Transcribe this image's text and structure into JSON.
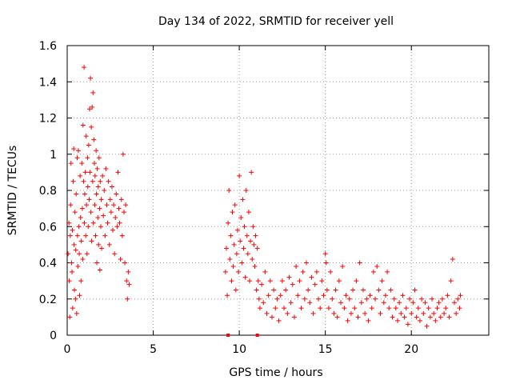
{
  "chart_data": {
    "type": "scatter",
    "title": "Day 134 of 2022, SRMTID for receiver yell",
    "xlabel": "GPS time / hours",
    "ylabel": "SRMTID / TECUs",
    "xlim": [
      0,
      24.5
    ],
    "ylim": [
      0,
      1.6
    ],
    "grid": true,
    "x_ticks": [
      0,
      5,
      10,
      15,
      20
    ],
    "x_tick_labels": [
      "0",
      "5",
      "10",
      "15",
      "20"
    ],
    "y_ticks": [
      0,
      0.2,
      0.4,
      0.6,
      0.8,
      1.0,
      1.2,
      1.4,
      1.6
    ],
    "y_tick_labels": [
      "0",
      "0.2",
      "0.4",
      "0.6",
      "0.8",
      "1",
      "1.2",
      "1.4",
      "1.6"
    ],
    "marker": "plus",
    "color": "#ff0000",
    "x_axis_markers": [
      9.35,
      11.05
    ],
    "series": [
      {
        "name": "SRMTID",
        "points": [
          [
            0.05,
            0.45
          ],
          [
            0.1,
            0.62
          ],
          [
            0.12,
            0.3
          ],
          [
            0.15,
            0.1
          ],
          [
            0.18,
            0.55
          ],
          [
            0.2,
            0.72
          ],
          [
            0.22,
            0.95
          ],
          [
            0.25,
            0.4
          ],
          [
            0.28,
            0.35
          ],
          [
            0.3,
            0.58
          ],
          [
            0.32,
            0.15
          ],
          [
            0.35,
            0.85
          ],
          [
            0.38,
            1.03
          ],
          [
            0.4,
            0.5
          ],
          [
            0.42,
            0.25
          ],
          [
            0.45,
            0.68
          ],
          [
            0.48,
            0.2
          ],
          [
            0.5,
            0.47
          ],
          [
            0.52,
            0.78
          ],
          [
            0.55,
            0.12
          ],
          [
            0.58,
            0.98
          ],
          [
            0.6,
            0.55
          ],
          [
            0.62,
            0.38
          ],
          [
            0.65,
            1.02
          ],
          [
            0.68,
            0.6
          ],
          [
            0.7,
            0.45
          ],
          [
            0.72,
            0.22
          ],
          [
            0.75,
            0.88
          ],
          [
            0.78,
            0.65
          ],
          [
            0.8,
            0.3
          ],
          [
            0.82,
            0.52
          ],
          [
            0.85,
            0.95
          ],
          [
            0.88,
            0.7
          ],
          [
            0.9,
            0.42
          ],
          [
            0.92,
            1.16
          ],
          [
            0.95,
            0.85
          ],
          [
            0.98,
            1.48
          ],
          [
            1.0,
            0.62
          ],
          [
            1.02,
            0.78
          ],
          [
            1.05,
            0.9
          ],
          [
            1.08,
            0.55
          ],
          [
            1.1,
            1.1
          ],
          [
            1.12,
            0.72
          ],
          [
            1.15,
            0.45
          ],
          [
            1.18,
            0.98
          ],
          [
            1.2,
            0.82
          ],
          [
            1.22,
            0.6
          ],
          [
            1.25,
            1.05
          ],
          [
            1.28,
            0.75
          ],
          [
            1.3,
            1.25
          ],
          [
            1.32,
            0.9
          ],
          [
            1.35,
            1.42
          ],
          [
            1.38,
            0.68
          ],
          [
            1.4,
            1.15
          ],
          [
            1.42,
            0.52
          ],
          [
            1.45,
            1.26
          ],
          [
            1.48,
            0.85
          ],
          [
            1.5,
            1.34
          ],
          [
            1.52,
            0.62
          ],
          [
            1.55,
            1.08
          ],
          [
            1.58,
            0.95
          ],
          [
            1.6,
            0.72
          ],
          [
            1.62,
            0.88
          ],
          [
            1.65,
            0.55
          ],
          [
            1.68,
            1.02
          ],
          [
            1.7,
            0.78
          ],
          [
            1.72,
            0.4
          ],
          [
            1.75,
            0.92
          ],
          [
            1.78,
            0.65
          ],
          [
            1.8,
            0.82
          ],
          [
            1.82,
            0.5
          ],
          [
            1.85,
            0.98
          ],
          [
            1.88,
            0.7
          ],
          [
            1.9,
            0.36
          ],
          [
            1.92,
            0.85
          ],
          [
            1.95,
            0.6
          ],
          [
            1.98,
            0.75
          ],
          [
            2.0,
            0.48
          ],
          [
            2.05,
            0.88
          ],
          [
            2.1,
            0.66
          ],
          [
            2.15,
            0.8
          ],
          [
            2.2,
            0.55
          ],
          [
            2.25,
            0.92
          ],
          [
            2.3,
            0.72
          ],
          [
            2.35,
            0.62
          ],
          [
            2.4,
            0.85
          ],
          [
            2.45,
            0.5
          ],
          [
            2.5,
            0.75
          ],
          [
            2.55,
            0.68
          ],
          [
            2.6,
            0.82
          ],
          [
            2.65,
            0.58
          ],
          [
            2.7,
            0.72
          ],
          [
            2.75,
            0.45
          ],
          [
            2.8,
            0.65
          ],
          [
            2.85,
            0.78
          ],
          [
            2.9,
            0.6
          ],
          [
            2.95,
            0.9
          ],
          [
            3.0,
            0.7
          ],
          [
            3.05,
            0.62
          ],
          [
            3.1,
            0.42
          ],
          [
            3.15,
            0.75
          ],
          [
            3.2,
            0.55
          ],
          [
            3.25,
            1.0
          ],
          [
            3.3,
            0.68
          ],
          [
            3.35,
            0.4
          ],
          [
            3.4,
            0.72
          ],
          [
            3.45,
            0.3
          ],
          [
            3.5,
            0.2
          ],
          [
            3.55,
            0.35
          ],
          [
            3.6,
            0.28
          ],
          [
            9.2,
            0.35
          ],
          [
            9.25,
            0.48
          ],
          [
            9.3,
            0.22
          ],
          [
            9.35,
            0.62
          ],
          [
            9.4,
            0.8
          ],
          [
            9.45,
            0.42
          ],
          [
            9.5,
            0.55
          ],
          [
            9.55,
            0.3
          ],
          [
            9.6,
            0.68
          ],
          [
            9.65,
            0.38
          ],
          [
            9.7,
            0.5
          ],
          [
            9.75,
            0.72
          ],
          [
            9.8,
            0.25
          ],
          [
            9.85,
            0.45
          ],
          [
            9.9,
            0.58
          ],
          [
            9.95,
            0.35
          ],
          [
            10.0,
            0.88
          ],
          [
            10.05,
            0.52
          ],
          [
            10.1,
            0.65
          ],
          [
            10.15,
            0.4
          ],
          [
            10.2,
            0.75
          ],
          [
            10.25,
            0.48
          ],
          [
            10.3,
            0.6
          ],
          [
            10.35,
            0.32
          ],
          [
            10.4,
            0.8
          ],
          [
            10.45,
            0.55
          ],
          [
            10.5,
            0.45
          ],
          [
            10.55,
            0.68
          ],
          [
            10.6,
            0.3
          ],
          [
            10.65,
            0.52
          ],
          [
            10.7,
            0.9
          ],
          [
            10.75,
            0.42
          ],
          [
            10.8,
            0.6
          ],
          [
            10.85,
            0.5
          ],
          [
            10.9,
            0.38
          ],
          [
            10.95,
            0.55
          ],
          [
            11.0,
            0.25
          ],
          [
            11.05,
            0.48
          ],
          [
            11.1,
            0.3
          ],
          [
            11.15,
            0.2
          ],
          [
            11.2,
            0.15
          ],
          [
            11.3,
            0.28
          ],
          [
            11.4,
            0.18
          ],
          [
            11.5,
            0.35
          ],
          [
            11.6,
            0.12
          ],
          [
            11.7,
            0.22
          ],
          [
            11.8,
            0.3
          ],
          [
            11.9,
            0.1
          ],
          [
            12.0,
            0.25
          ],
          [
            12.1,
            0.15
          ],
          [
            12.2,
            0.2
          ],
          [
            12.3,
            0.08
          ],
          [
            12.4,
            0.22
          ],
          [
            12.5,
            0.3
          ],
          [
            12.6,
            0.15
          ],
          [
            12.7,
            0.25
          ],
          [
            12.8,
            0.12
          ],
          [
            12.9,
            0.32
          ],
          [
            13.0,
            0.18
          ],
          [
            13.1,
            0.28
          ],
          [
            13.2,
            0.1
          ],
          [
            13.3,
            0.38
          ],
          [
            13.4,
            0.22
          ],
          [
            13.5,
            0.3
          ],
          [
            13.6,
            0.15
          ],
          [
            13.7,
            0.35
          ],
          [
            13.8,
            0.2
          ],
          [
            13.9,
            0.4
          ],
          [
            14.0,
            0.25
          ],
          [
            14.1,
            0.18
          ],
          [
            14.2,
            0.32
          ],
          [
            14.3,
            0.12
          ],
          [
            14.4,
            0.28
          ],
          [
            14.5,
            0.35
          ],
          [
            14.6,
            0.2
          ],
          [
            14.7,
            0.15
          ],
          [
            14.8,
            0.3
          ],
          [
            14.9,
            0.22
          ],
          [
            15.0,
            0.45
          ],
          [
            15.05,
            0.4
          ],
          [
            15.1,
            0.25
          ],
          [
            15.2,
            0.15
          ],
          [
            15.3,
            0.35
          ],
          [
            15.4,
            0.2
          ],
          [
            15.5,
            0.12
          ],
          [
            15.6,
            0.25
          ],
          [
            15.7,
            0.1
          ],
          [
            15.8,
            0.3
          ],
          [
            15.9,
            0.18
          ],
          [
            16.0,
            0.38
          ],
          [
            16.1,
            0.15
          ],
          [
            16.2,
            0.22
          ],
          [
            16.3,
            0.08
          ],
          [
            16.4,
            0.2
          ],
          [
            16.5,
            0.12
          ],
          [
            16.6,
            0.25
          ],
          [
            16.7,
            0.15
          ],
          [
            16.8,
            0.3
          ],
          [
            16.9,
            0.1
          ],
          [
            17.0,
            0.4
          ],
          [
            17.1,
            0.18
          ],
          [
            17.2,
            0.25
          ],
          [
            17.3,
            0.12
          ],
          [
            17.4,
            0.2
          ],
          [
            17.5,
            0.08
          ],
          [
            17.6,
            0.22
          ],
          [
            17.7,
            0.15
          ],
          [
            17.8,
            0.35
          ],
          [
            17.9,
            0.2
          ],
          [
            18.0,
            0.38
          ],
          [
            18.1,
            0.25
          ],
          [
            18.2,
            0.12
          ],
          [
            18.3,
            0.3
          ],
          [
            18.4,
            0.18
          ],
          [
            18.5,
            0.22
          ],
          [
            18.6,
            0.35
          ],
          [
            18.7,
            0.15
          ],
          [
            18.8,
            0.25
          ],
          [
            18.9,
            0.1
          ],
          [
            19.0,
            0.2
          ],
          [
            19.1,
            0.15
          ],
          [
            19.2,
            0.08
          ],
          [
            19.3,
            0.18
          ],
          [
            19.4,
            0.12
          ],
          [
            19.5,
            0.22
          ],
          [
            19.6,
            0.1
          ],
          [
            19.7,
            0.15
          ],
          [
            19.8,
            0.06
          ],
          [
            19.9,
            0.2
          ],
          [
            20.0,
            0.12
          ],
          [
            20.1,
            0.18
          ],
          [
            20.2,
            0.25
          ],
          [
            20.3,
            0.1
          ],
          [
            20.4,
            0.15
          ],
          [
            20.5,
            0.08
          ],
          [
            20.6,
            0.2
          ],
          [
            20.7,
            0.12
          ],
          [
            20.8,
            0.18
          ],
          [
            20.9,
            0.05
          ],
          [
            21.0,
            0.15
          ],
          [
            21.1,
            0.1
          ],
          [
            21.2,
            0.2
          ],
          [
            21.3,
            0.12
          ],
          [
            21.4,
            0.08
          ],
          [
            21.5,
            0.15
          ],
          [
            21.6,
            0.18
          ],
          [
            21.7,
            0.1
          ],
          [
            21.8,
            0.2
          ],
          [
            21.9,
            0.12
          ],
          [
            22.0,
            0.15
          ],
          [
            22.1,
            0.22
          ],
          [
            22.2,
            0.1
          ],
          [
            22.3,
            0.3
          ],
          [
            22.4,
            0.42
          ],
          [
            22.5,
            0.18
          ],
          [
            22.6,
            0.12
          ],
          [
            22.7,
            0.2
          ],
          [
            22.8,
            0.15
          ],
          [
            22.85,
            0.22
          ]
        ]
      }
    ]
  }
}
